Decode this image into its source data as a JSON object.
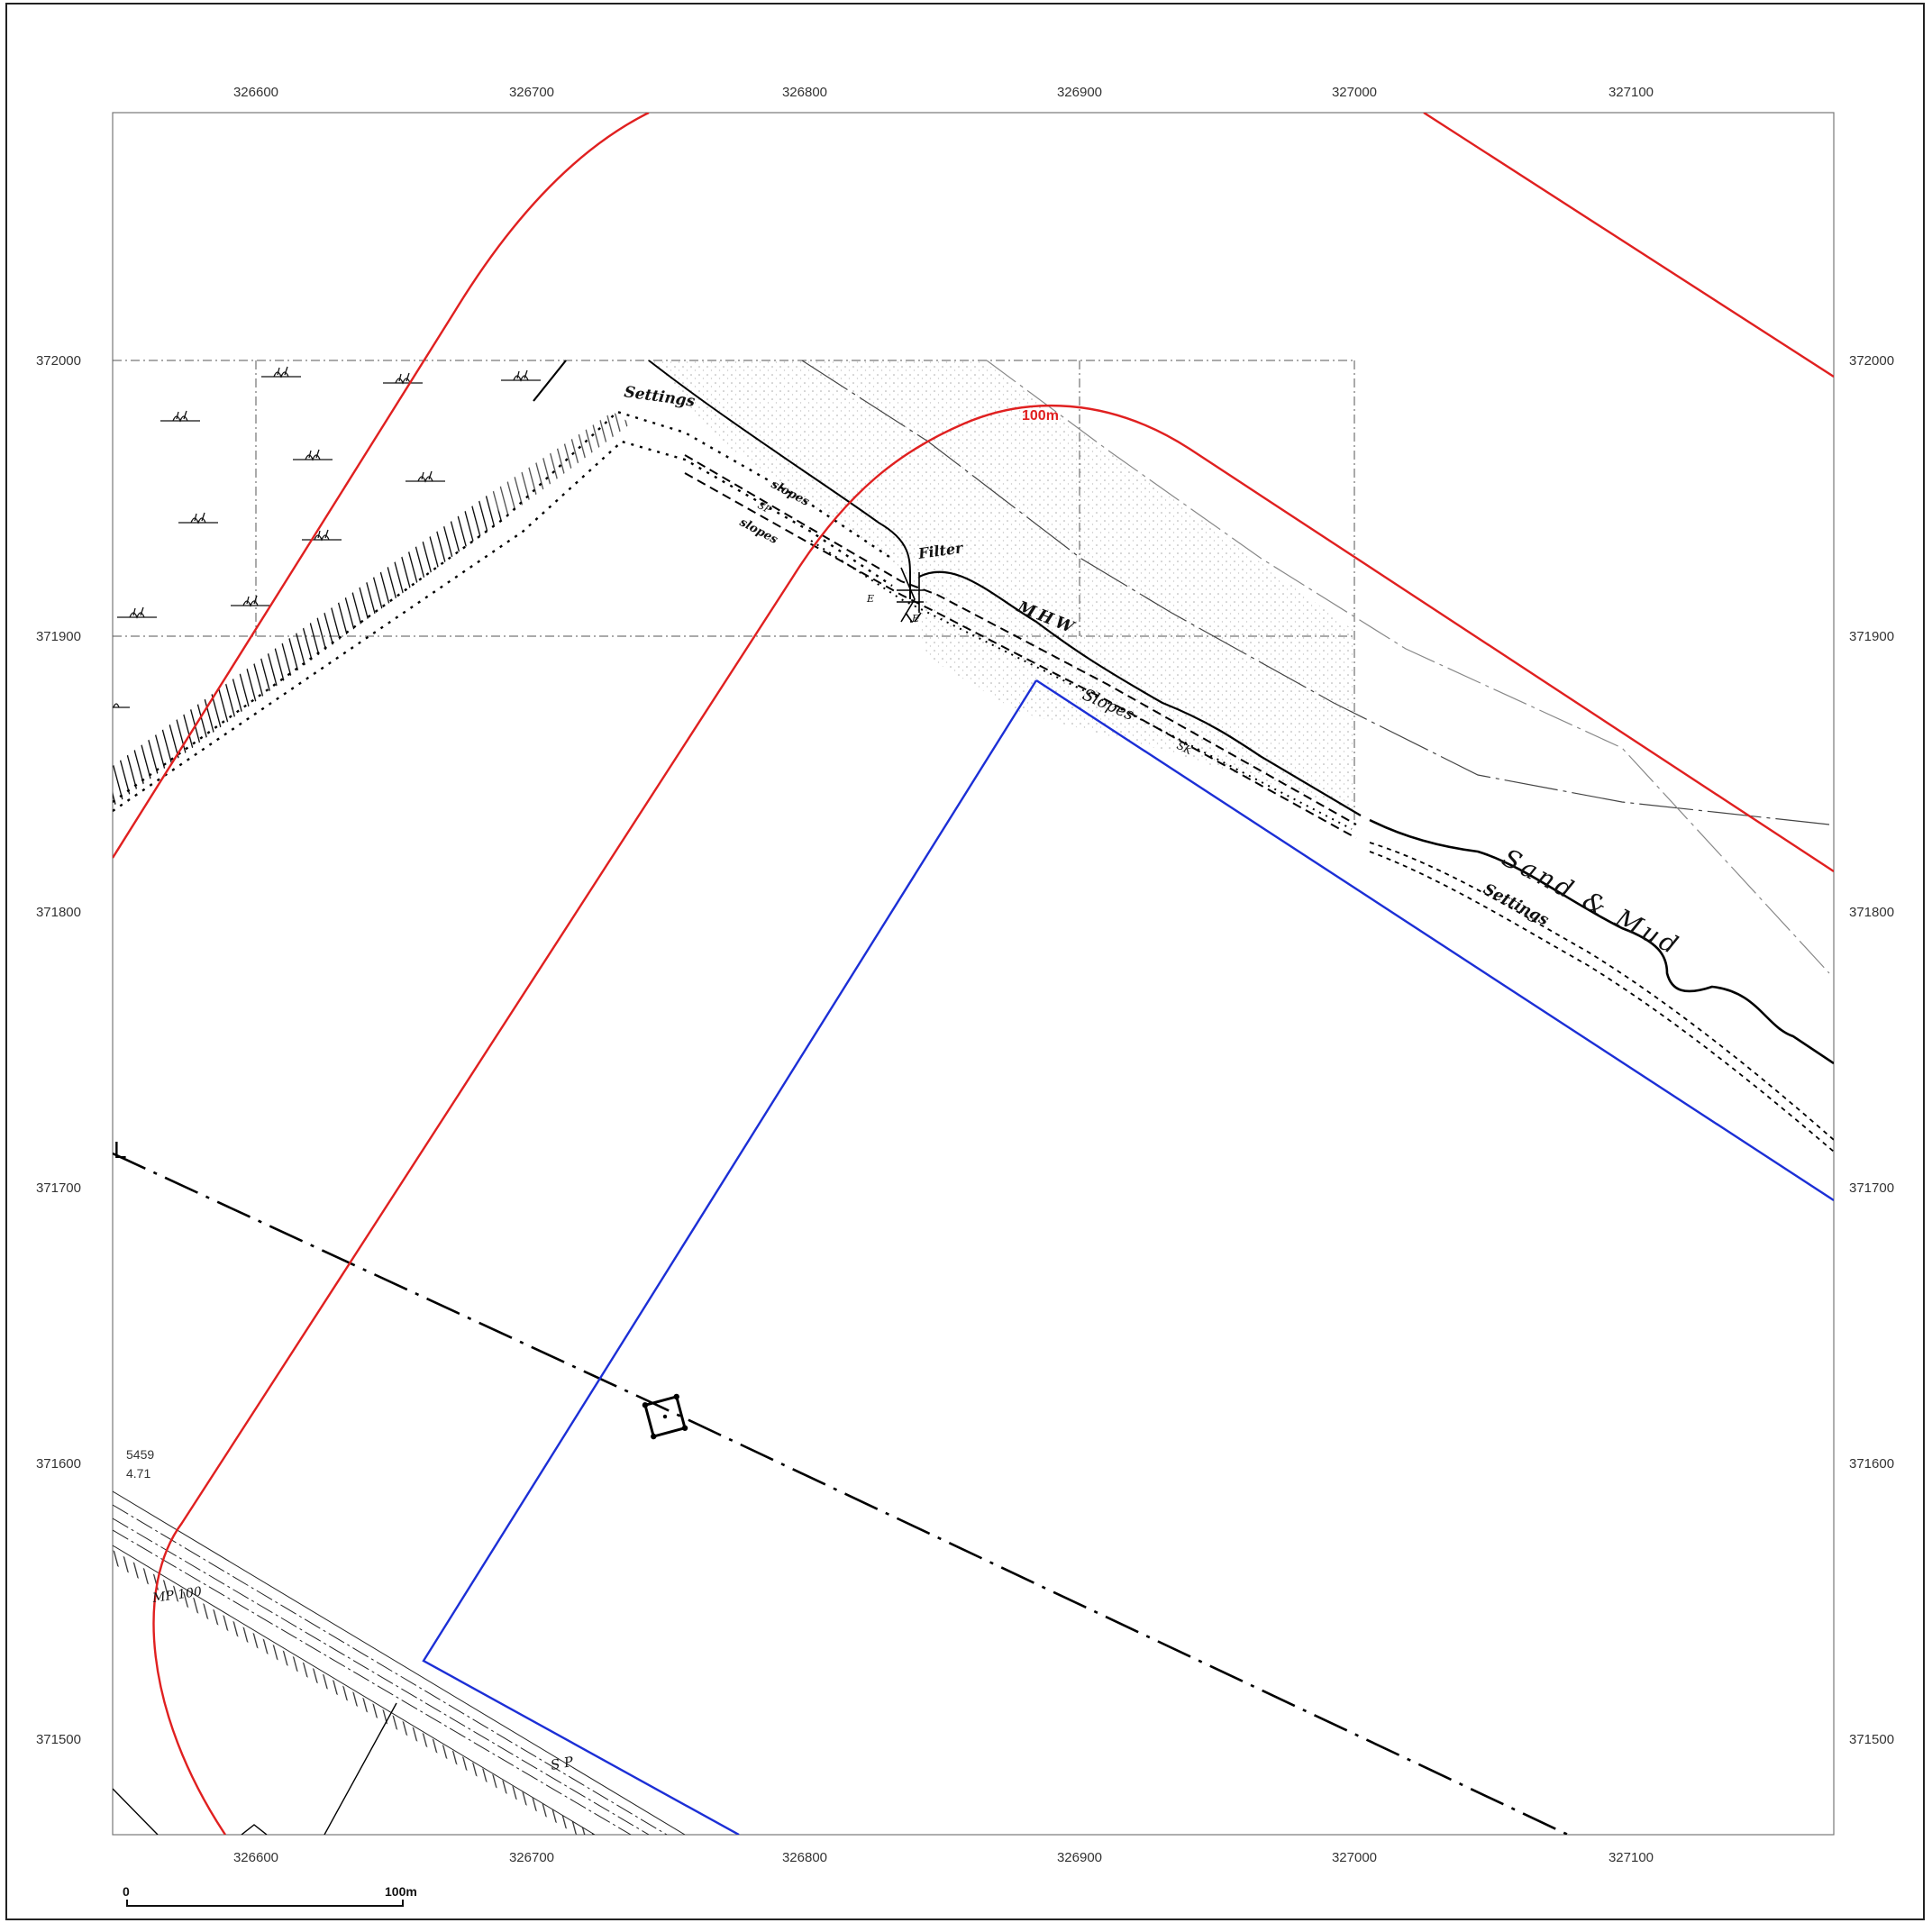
{
  "map": {
    "x_ticks": [
      "326600",
      "326700",
      "326800",
      "326900",
      "327000",
      "327100"
    ],
    "y_ticks": [
      "372000",
      "371900",
      "371800",
      "371700",
      "371600",
      "371500"
    ],
    "buffer_label": "100m",
    "buffer_color": "#e02020",
    "site_boundary_color": "#1c2fd6",
    "annotations": {
      "settings_top": "Settings",
      "slopes_1": "slopes",
      "sp_1": "SP",
      "slopes_2": "slopes",
      "filter": "Filter",
      "e_left": "E",
      "e_right": "E",
      "mhw": "MHW",
      "slopes_3": "Slopes",
      "sk": "SK",
      "sand_mud": "Sand & Mud",
      "settings_bottom": "Settings",
      "bm_1": "5459",
      "bm_2": "4.71",
      "mp": "MP 100",
      "sp_2": "S P"
    },
    "scale_bar": {
      "start": "0",
      "end": "100m"
    }
  }
}
